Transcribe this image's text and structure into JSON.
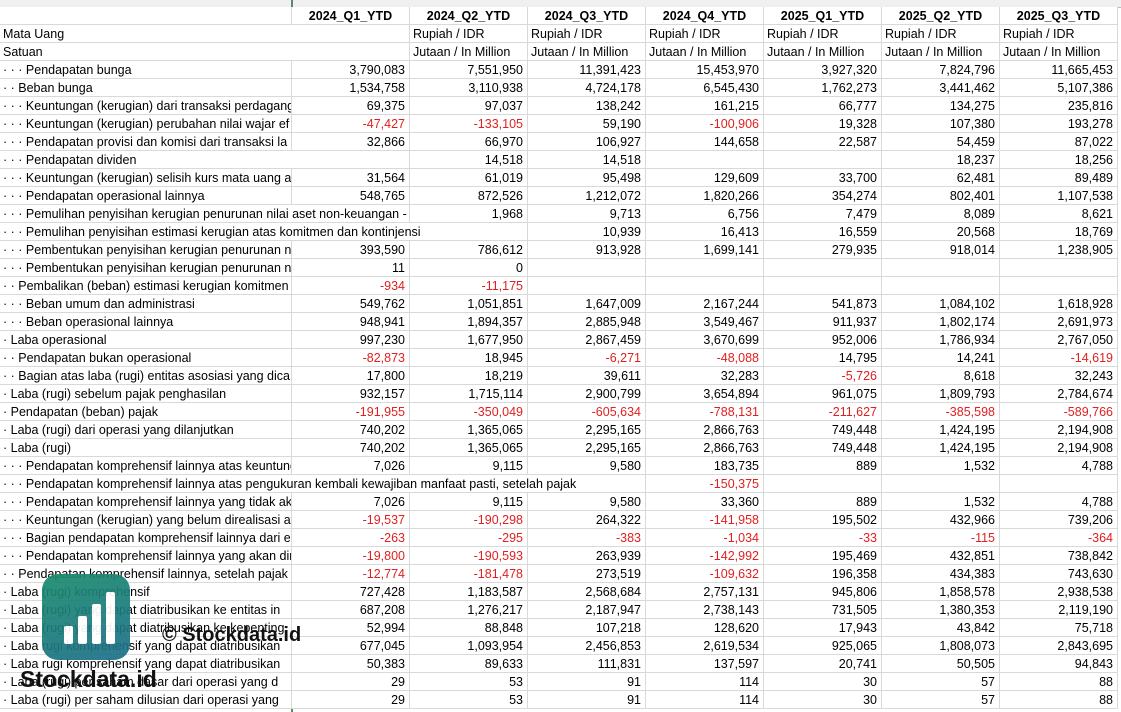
{
  "columns": [
    "2024_Q1_YTD",
    "2024_Q2_YTD",
    "2024_Q3_YTD",
    "2024_Q4_YTD",
    "2025_Q1_YTD",
    "2025_Q2_YTD",
    "2025_Q3_YTD"
  ],
  "rows": [
    {
      "label": "Mata Uang",
      "cells": [
        null,
        "Rupiah / IDR",
        "Rupiah / IDR",
        "Rupiah / IDR",
        "Rupiah / IDR",
        "Rupiah / IDR",
        "Rupiah / IDR"
      ]
    },
    {
      "label": "Satuan",
      "cells": [
        null,
        "Jutaan / In Million",
        "Jutaan / In Million",
        "Jutaan / In Million",
        "Jutaan / In Million",
        "Jutaan / In Million",
        "Jutaan / In Million"
      ]
    },
    {
      "label": "· · · Pendapatan bunga",
      "cells": [
        "3,790,083",
        "7,551,950",
        "11,391,423",
        "15,453,970",
        "3,927,320",
        "7,824,796",
        "11,665,453"
      ]
    },
    {
      "label": "· · Beban bunga",
      "cells": [
        "1,534,758",
        "3,110,938",
        "4,724,178",
        "6,545,430",
        "1,762,273",
        "3,441,462",
        "5,107,386"
      ]
    },
    {
      "label": "· · ·  Keuntungan (kerugian) dari transaksi perdagang",
      "cells": [
        "69,375",
        "97,037",
        "138,242",
        "161,215",
        "66,777",
        "134,275",
        "235,816"
      ]
    },
    {
      "label": "· · ·  Keuntungan (kerugian) perubahan nilai wajar ef",
      "cells": [
        "-47,427",
        "-133,105",
        "59,190",
        "-100,906",
        "19,328",
        "107,380",
        "193,278"
      ]
    },
    {
      "label": "· · ·  Pendapatan provisi dan komisi dari transaksi la",
      "cells": [
        "32,866",
        "66,970",
        "106,927",
        "144,658",
        "22,587",
        "54,459",
        "87,022"
      ]
    },
    {
      "label": "· · ·  Pendapatan dividen",
      "cells": [
        null,
        "14,518",
        "14,518",
        null,
        null,
        "18,237",
        "18,256"
      ]
    },
    {
      "label": "· · ·  Keuntungan (kerugian) selisih kurs mata uang as",
      "cells": [
        "31,564",
        "61,019",
        "95,498",
        "129,609",
        "33,700",
        "62,481",
        "89,489"
      ]
    },
    {
      "label": "· · ·  Pendapatan operasional lainnya",
      "cells": [
        "548,765",
        "872,526",
        "1,212,072",
        "1,820,266",
        "354,274",
        "802,401",
        "1,107,538"
      ]
    },
    {
      "label": "· · ·  Pemulihan penyisihan kerugian penurunan nilai aset non-keuangan - a",
      "cells": [
        null,
        "1,968",
        "9,713",
        "6,756",
        "7,479",
        "8,089",
        "8,621"
      ]
    },
    {
      "label": "· · ·  Pemulihan penyisihan estimasi kerugian atas komitmen dan kontinjensi",
      "cells": [
        null,
        null,
        "10,939",
        "16,413",
        "16,559",
        "20,568",
        "18,769"
      ]
    },
    {
      "label": "· · ·  Pembentukan penyisihan kerugian penurunan ni",
      "cells": [
        "393,590",
        "786,612",
        "913,928",
        "1,699,141",
        "279,935",
        "918,014",
        "1,238,905"
      ]
    },
    {
      "label": "· · ·  Pembentukan penyisihan kerugian penurunan ni",
      "cells": [
        "11",
        "0",
        null,
        null,
        null,
        null,
        null
      ]
    },
    {
      "label": "· · Pembalikan (beban) estimasi kerugian komitmen",
      "cells": [
        "-934",
        "-11,175",
        null,
        null,
        null,
        null,
        null
      ]
    },
    {
      "label": "· · ·  Beban umum dan administrasi",
      "cells": [
        "549,762",
        "1,051,851",
        "1,647,009",
        "2,167,244",
        "541,873",
        "1,084,102",
        "1,618,928"
      ]
    },
    {
      "label": "· · ·  Beban operasional lainnya",
      "cells": [
        "948,941",
        "1,894,357",
        "2,885,948",
        "3,549,467",
        "911,937",
        "1,802,174",
        "2,691,973"
      ]
    },
    {
      "label": "· Laba operasional",
      "cells": [
        "997,230",
        "1,677,950",
        "2,867,459",
        "3,670,699",
        "952,006",
        "1,786,934",
        "2,767,050"
      ]
    },
    {
      "label": "· ·  Pendapatan bukan operasional",
      "cells": [
        "-82,873",
        "18,945",
        "-6,271",
        "-48,088",
        "14,795",
        "14,241",
        "-14,619"
      ]
    },
    {
      "label": "· ·  Bagian atas laba (rugi) entitas asosiasi yang dica",
      "cells": [
        "17,800",
        "18,219",
        "39,611",
        "32,283",
        "-5,726",
        "8,618",
        "32,243"
      ]
    },
    {
      "label": "· Laba (rugi) sebelum pajak penghasilan",
      "cells": [
        "932,157",
        "1,715,114",
        "2,900,799",
        "3,654,894",
        "961,075",
        "1,809,793",
        "2,784,674"
      ]
    },
    {
      "label": "· Pendapatan (beban) pajak",
      "cells": [
        "-191,955",
        "-350,049",
        "-605,634",
        "-788,131",
        "-211,627",
        "-385,598",
        "-589,766"
      ]
    },
    {
      "label": "· Laba (rugi) dari operasi yang dilanjutkan",
      "cells": [
        "740,202",
        "1,365,065",
        "2,295,165",
        "2,866,763",
        "749,448",
        "1,424,195",
        "2,194,908"
      ]
    },
    {
      "label": "· Laba (rugi)",
      "cells": [
        "740,202",
        "1,365,065",
        "2,295,165",
        "2,866,763",
        "749,448",
        "1,424,195",
        "2,194,908"
      ]
    },
    {
      "label": "· · ·  Pendapatan komprehensif lainnya atas keuntung",
      "cells": [
        "7,026",
        "9,115",
        "9,580",
        "183,735",
        "889",
        "1,532",
        "4,788"
      ]
    },
    {
      "label": "· · ·  Pendapatan komprehensif lainnya atas pengukuran kembali kewajiban manfaat pasti, setelah pajak",
      "cells": [
        null,
        null,
        null,
        "-150,375",
        null,
        null,
        null
      ]
    },
    {
      "label": "· · ·  Pendapatan komprehensif lainnya yang tidak ak",
      "cells": [
        "7,026",
        "9,115",
        "9,580",
        "33,360",
        "889",
        "1,532",
        "4,788"
      ]
    },
    {
      "label": "· · ·  Keuntungan (kerugian) yang belum direalisasi at",
      "cells": [
        "-19,537",
        "-190,298",
        "264,322",
        "-141,958",
        "195,502",
        "432,966",
        "739,206"
      ]
    },
    {
      "label": "· · ·  Bagian pendapatan komprehensif lainnya dari e",
      "cells": [
        "-263",
        "-295",
        "-383",
        "-1,034",
        "-33",
        "-115",
        "-364"
      ]
    },
    {
      "label": "· · ·  Pendapatan komprehensif lainnya yang akan dir",
      "cells": [
        "-19,800",
        "-190,593",
        "263,939",
        "-142,992",
        "195,469",
        "432,851",
        "738,842"
      ]
    },
    {
      "label": "· · Pendapatan komprehensif lainnya, setelah pajak",
      "cells": [
        "-12,774",
        "-181,478",
        "273,519",
        "-109,632",
        "196,358",
        "434,383",
        "743,630"
      ]
    },
    {
      "label": "· Laba (rugi) komprehensif",
      "cells": [
        "727,428",
        "1,183,587",
        "2,568,684",
        "2,757,131",
        "945,806",
        "1,858,578",
        "2,938,538"
      ]
    },
    {
      "label": "· Laba (rugi) yang dapat diatribusikan ke entitas in",
      "cells": [
        "687,208",
        "1,276,217",
        "2,187,947",
        "2,738,143",
        "731,505",
        "1,380,353",
        "2,119,190"
      ]
    },
    {
      "label": "· Laba (rugi) yang dapat diatribusikan ke kepenting",
      "cells": [
        "52,994",
        "88,848",
        "107,218",
        "128,620",
        "17,943",
        "43,842",
        "75,718"
      ]
    },
    {
      "label": "· Laba rugi komprehensif yang dapat diatribusikan",
      "cells": [
        "677,045",
        "1,093,954",
        "2,456,853",
        "2,619,534",
        "925,065",
        "1,808,073",
        "2,843,695"
      ]
    },
    {
      "label": "· Laba rugi komprehensif yang dapat diatribusikan",
      "cells": [
        "50,383",
        "89,633",
        "111,831",
        "137,597",
        "20,741",
        "50,505",
        "94,843"
      ]
    },
    {
      "label": "· Laba (rugi) per saham dasar dari operasi yang d",
      "cells": [
        "29",
        "53",
        "91",
        "114",
        "30",
        "57",
        "88"
      ]
    },
    {
      "label": "· Laba (rugi) per saham dilusian dari operasi yang",
      "cells": [
        "29",
        "53",
        "91",
        "114",
        "30",
        "57",
        "88"
      ]
    }
  ],
  "watermark": {
    "copyright": "© Stockdata.id",
    "brand": "Stockdata.id"
  }
}
